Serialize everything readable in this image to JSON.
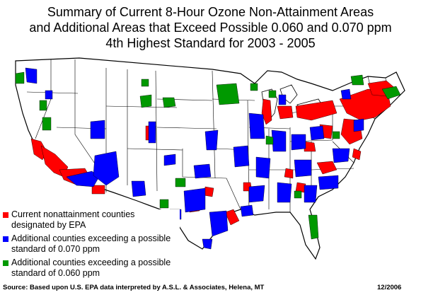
{
  "title": {
    "line1": "Summary of Current 8-Hour Ozone Non-Attainment Areas",
    "line2": "and Additional Areas that Exceed Possible 0.060 and 0.070 ppm",
    "line3": "4th Highest Standard for 2003 - 2005"
  },
  "legend": [
    {
      "label": "Current nonattainment counties designated by EPA",
      "color": "#ff0000"
    },
    {
      "label": "Additional counties exceeding a possible standard of 0.070 ppm",
      "color": "#0000ff"
    },
    {
      "label": "Additional counties exceeding a possible standard of 0.060 ppm",
      "color": "#009900"
    }
  ],
  "footer": {
    "source": "Source: Based upon U.S. EPA data interpreted by A.S.L. & Associates, Helena, MT",
    "date": "12/2006"
  },
  "colors": {
    "nonattainment": "#ff0000",
    "exceed_070": "#0000ff",
    "exceed_060": "#009900",
    "land": "#ffffff",
    "boundary": "#000000"
  }
}
